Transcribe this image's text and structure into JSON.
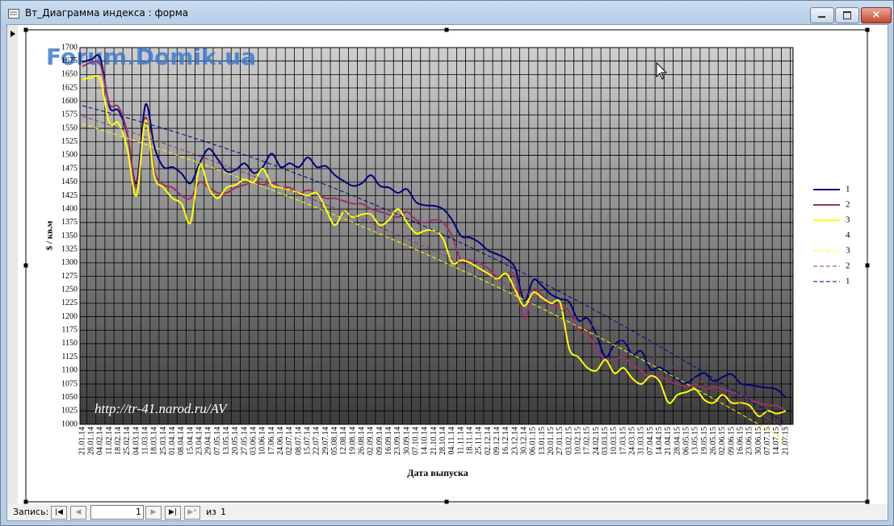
{
  "window": {
    "title": "Вт_Диаграмма индекса : форма"
  },
  "chart_data": {
    "type": "line",
    "y_label": "$ / кв.м",
    "x_label": "Дата выпуска",
    "watermarks": [
      "Forum.Domik.ua",
      "http://tr-41.narod.ru/AV"
    ],
    "categories": [
      "21.01.14",
      "28.01.14",
      "04.02.14",
      "11.02.14",
      "18.02.14",
      "25.02.14",
      "04.03.14",
      "11.03.14",
      "18.03.14",
      "25.03.14",
      "01.04.14",
      "08.04.14",
      "15.04.14",
      "23.04.14",
      "29.04.14",
      "07.05.14",
      "13.05.14",
      "20.05.14",
      "27.05.14",
      "03.06.14",
      "10.06.14",
      "17.06.14",
      "24.06.14",
      "02.07.14",
      "08.07.14",
      "15.07.14",
      "22.07.14",
      "29.07.14",
      "05.08.14",
      "12.08.14",
      "19.08.14",
      "26.08.14",
      "02.09.14",
      "09.09.14",
      "16.09.14",
      "23.09.14",
      "30.09.14",
      "07.10.14",
      "14.10.14",
      "21.10.14",
      "28.10.14",
      "04.11.14",
      "11.11.14",
      "18.11.14",
      "25.11.14",
      "02.12.14",
      "09.12.14",
      "16.12.14",
      "23.12.14",
      "30.12.14",
      "06.01.15",
      "13.01.15",
      "20.01.15",
      "27.01.15",
      "03.02.15",
      "10.02.15",
      "17.02.15",
      "24.02.15",
      "03.03.15",
      "10.03.15",
      "17.03.15",
      "24.03.15",
      "31.03.15",
      "07.04.15",
      "14.04.15",
      "21.04.15",
      "28.04.15",
      "06.05.15",
      "13.05.15",
      "19.05.15",
      "26.05.15",
      "02.06.15",
      "09.06.15",
      "16.06.15",
      "23.06.15",
      "30.06.15",
      "07.07.15",
      "14.07.15",
      "21.07.15"
    ],
    "series": [
      {
        "name": "1",
        "color": "#000080",
        "values": [
          1673,
          1678,
          1680,
          1590,
          1583,
          1538,
          1448,
          1594,
          1515,
          1478,
          1478,
          1466,
          1448,
          1485,
          1512,
          1493,
          1470,
          1473,
          1485,
          1467,
          1478,
          1503,
          1478,
          1485,
          1478,
          1496,
          1478,
          1480,
          1463,
          1452,
          1443,
          1448,
          1463,
          1443,
          1440,
          1430,
          1437,
          1413,
          1407,
          1406,
          1400,
          1380,
          1350,
          1347,
          1338,
          1323,
          1316,
          1308,
          1290,
          1230,
          1268,
          1257,
          1241,
          1233,
          1227,
          1193,
          1197,
          1167,
          1125,
          1148,
          1155,
          1130,
          1136,
          1103,
          1106,
          1095,
          1083,
          1077,
          1088,
          1095,
          1080,
          1088,
          1093,
          1076,
          1073,
          1070,
          1068,
          1065,
          1050
        ]
      },
      {
        "name": "2",
        "color": "#993366",
        "values": [
          1665,
          1672,
          1668,
          1595,
          1590,
          1540,
          1440,
          1570,
          1470,
          1445,
          1440,
          1425,
          1420,
          1450,
          1440,
          1430,
          1430,
          1440,
          1445,
          1450,
          1445,
          1450,
          1440,
          1440,
          1430,
          1435,
          1430,
          1420,
          1420,
          1415,
          1410,
          1410,
          1400,
          1395,
          1390,
          1385,
          1395,
          1380,
          1375,
          1380,
          1375,
          1350,
          1305,
          1305,
          1300,
          1290,
          1275,
          1280,
          1275,
          1195,
          1250,
          1240,
          1225,
          1220,
          1210,
          1175,
          1170,
          1140,
          1120,
          1120,
          1125,
          1110,
          1100,
          1085,
          1090,
          1080,
          1075,
          1070,
          1075,
          1065,
          1070,
          1065,
          1060,
          1055,
          1045,
          1040,
          1035,
          1035,
          1025
        ]
      },
      {
        "name": "3",
        "color": "#ffff00",
        "values": [
          1640,
          1645,
          1640,
          1560,
          1560,
          1510,
          1425,
          1565,
          1460,
          1440,
          1420,
          1410,
          1375,
          1480,
          1440,
          1420,
          1440,
          1445,
          1455,
          1450,
          1475,
          1445,
          1440,
          1435,
          1430,
          1425,
          1430,
          1400,
          1370,
          1395,
          1385,
          1390,
          1390,
          1370,
          1380,
          1400,
          1375,
          1355,
          1360,
          1360,
          1345,
          1300,
          1305,
          1300,
          1290,
          1280,
          1270,
          1280,
          1250,
          1220,
          1245,
          1235,
          1225,
          1225,
          1140,
          1125,
          1105,
          1100,
          1120,
          1095,
          1105,
          1085,
          1075,
          1090,
          1080,
          1040,
          1055,
          1060,
          1065,
          1045,
          1040,
          1055,
          1040,
          1040,
          1035,
          1015,
          1025,
          1020,
          1025
        ]
      },
      {
        "name": "4",
        "color": "#00ffff",
        "values": [
          null,
          null,
          null,
          null,
          null,
          null,
          null,
          null,
          null,
          null,
          null,
          null,
          null,
          null,
          null,
          null,
          null,
          null,
          null,
          null,
          null,
          null,
          null,
          null,
          null,
          null,
          null,
          null,
          null,
          null,
          null,
          null,
          null,
          null,
          null,
          null,
          null,
          null,
          null,
          null,
          null,
          null,
          null,
          null,
          null,
          null,
          null,
          null,
          null,
          null,
          null,
          null,
          null,
          null,
          null,
          null,
          null,
          null,
          null,
          null,
          null,
          null,
          null,
          null,
          null,
          null,
          null,
          null,
          null,
          null,
          null,
          null,
          null,
          null,
          null,
          null,
          null,
          null,
          null
        ]
      },
      {
        "name": "3",
        "color": "#ffff00",
        "dashed": true,
        "trend_of": 2
      },
      {
        "name": "2",
        "color": "#993366",
        "dashed": true,
        "trend_of": 1
      },
      {
        "name": "1",
        "color": "#000080",
        "dashed": true,
        "trend_of": 0
      }
    ],
    "ylim": [
      1000,
      1700
    ],
    "yticks": [
      1000,
      1025,
      1050,
      1075,
      1100,
      1125,
      1150,
      1175,
      1200,
      1225,
      1250,
      1275,
      1300,
      1325,
      1350,
      1375,
      1400,
      1425,
      1450,
      1475,
      1500,
      1525,
      1550,
      1575,
      1600,
      1625,
      1650,
      1675,
      1700
    ],
    "grid": true,
    "legend": "right"
  },
  "navigation": {
    "label": "Запись:",
    "current": 1,
    "of": "из",
    "total": 1
  }
}
